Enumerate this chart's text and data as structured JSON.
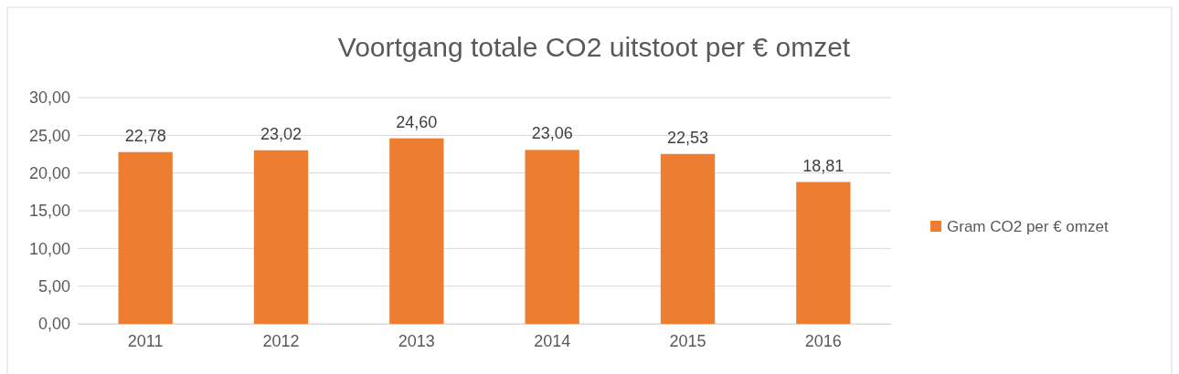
{
  "chart_data": {
    "type": "bar",
    "title": "Voortgang totale CO2 uitstoot per € omzet",
    "categories": [
      "2011",
      "2012",
      "2013",
      "2014",
      "2015",
      "2016"
    ],
    "series": [
      {
        "name": "Gram CO2 per € omzet",
        "color": "#ed7d31",
        "values": [
          22.78,
          23.02,
          24.6,
          23.06,
          22.53,
          18.81
        ],
        "value_labels": [
          "22,78",
          "23,02",
          "24,60",
          "23,06",
          "22,53",
          "18,81"
        ]
      }
    ],
    "ylim": [
      0,
      30
    ],
    "yticks": [
      {
        "value": 0,
        "label": "0,00"
      },
      {
        "value": 5,
        "label": "5,00"
      },
      {
        "value": 10,
        "label": "10,00"
      },
      {
        "value": 15,
        "label": "15,00"
      },
      {
        "value": 20,
        "label": "20,00"
      },
      {
        "value": 25,
        "label": "25,00"
      },
      {
        "value": 30,
        "label": "30,00"
      }
    ],
    "grid": "y",
    "legend": "right"
  }
}
